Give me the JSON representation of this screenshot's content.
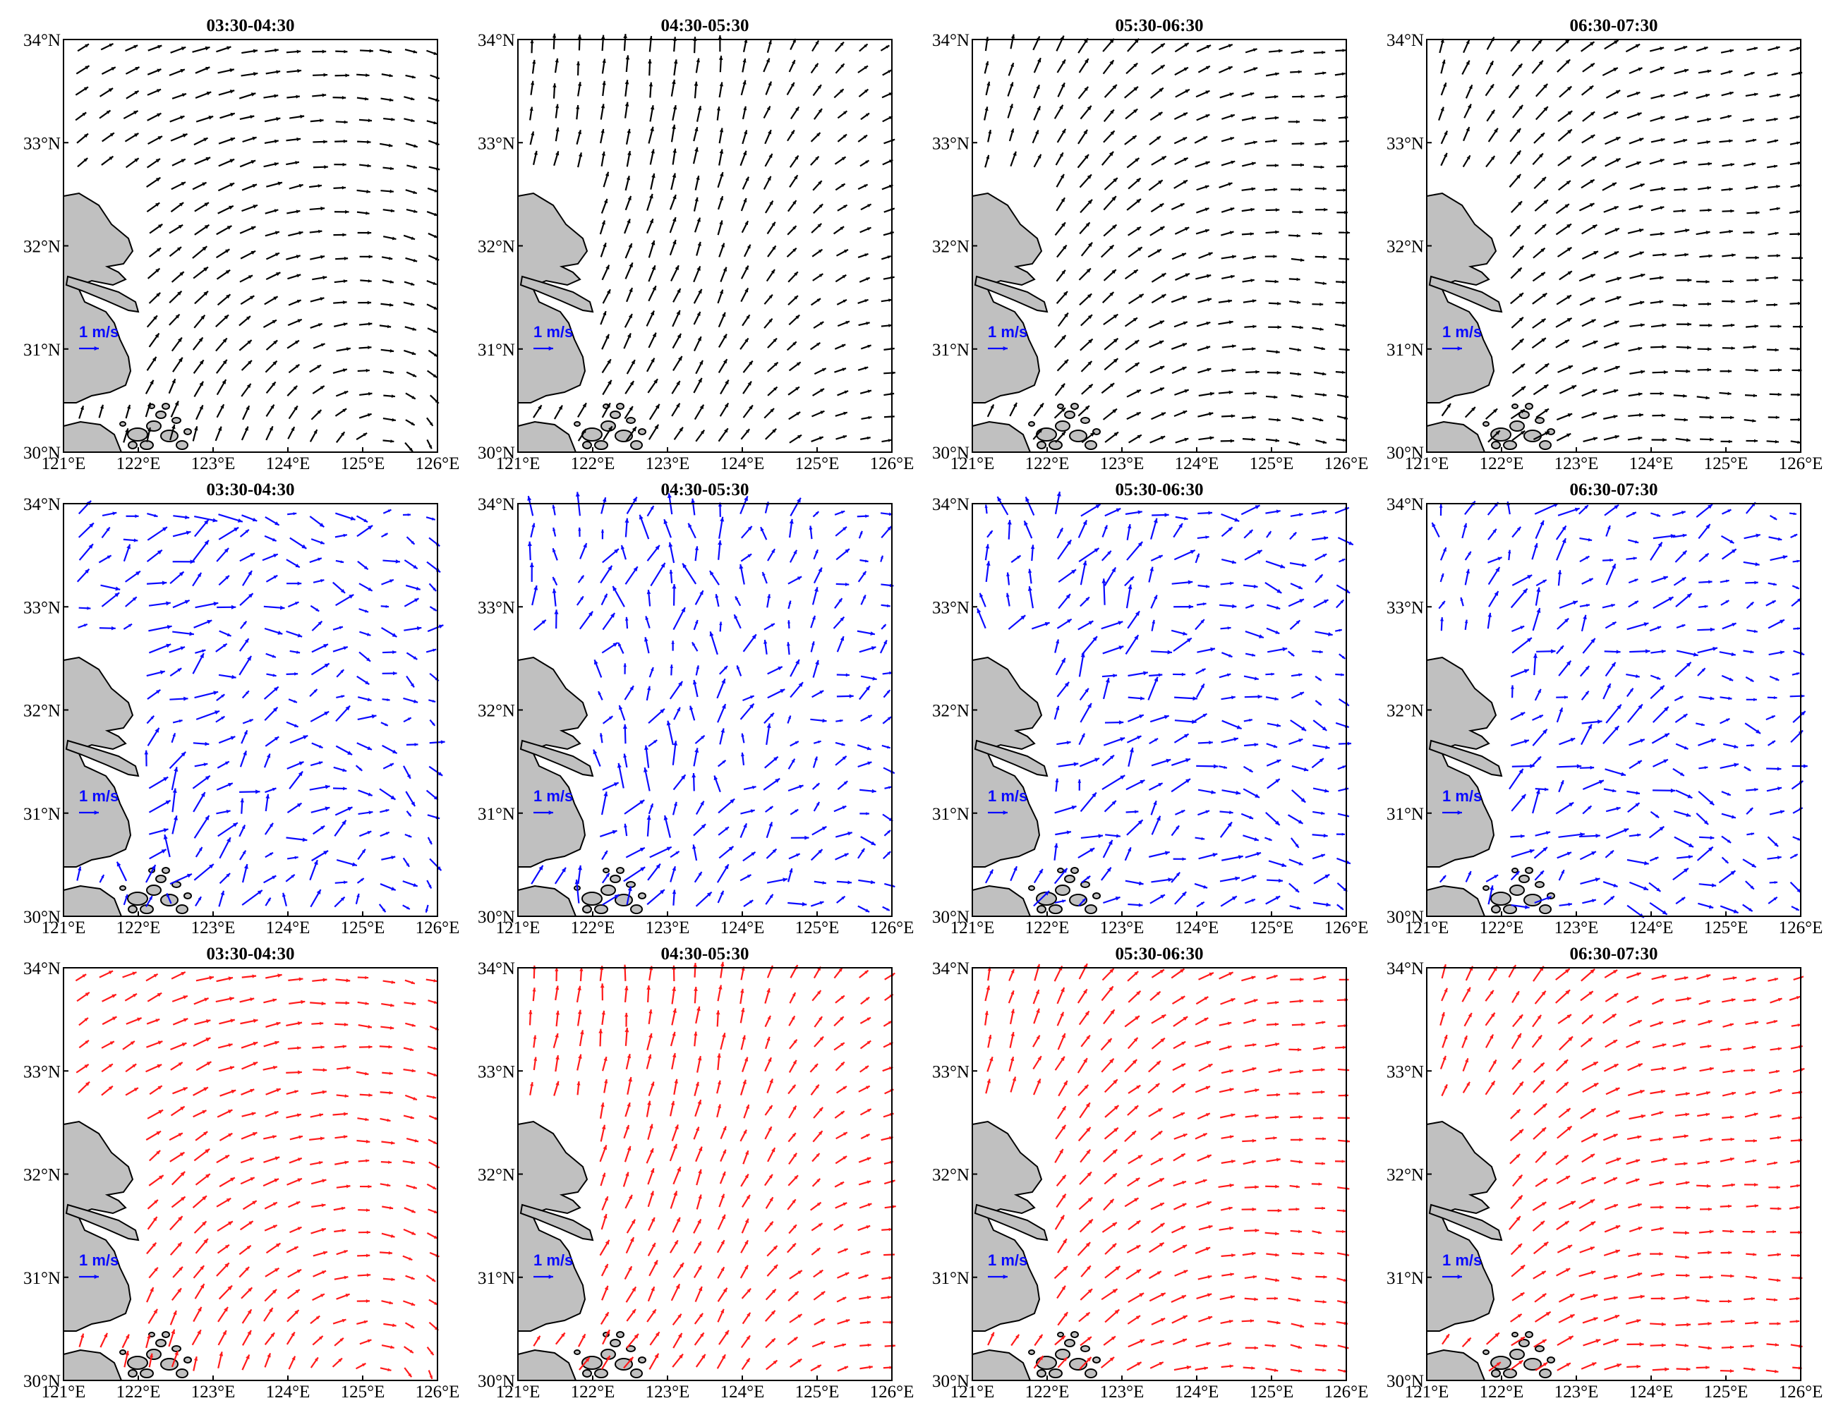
{
  "figure": {
    "rows": [
      {
        "name": "black-row",
        "color": "#000000",
        "seed": 11
      },
      {
        "name": "blue-row",
        "color": "#0a0aff",
        "seed": 29
      },
      {
        "name": "red-row",
        "color": "#ff1a1a",
        "seed": 47
      }
    ],
    "panel_titles": [
      "03:30-04:30",
      "04:30-05:30",
      "05:30-06:30",
      "06:30-07:30"
    ],
    "x_ticks": [
      "121°E",
      "122°E",
      "123°E",
      "124°E",
      "125°E",
      "126°E"
    ],
    "y_ticks": [
      "34°N",
      "33°N",
      "32°N",
      "31°N",
      "30°N"
    ],
    "x_range_deg": [
      121,
      126
    ],
    "y_range_deg": [
      30,
      34
    ],
    "scale_label": "1 m/s",
    "scale_color": "#0a0aff",
    "land_color": "#c0c0c0"
  }
}
